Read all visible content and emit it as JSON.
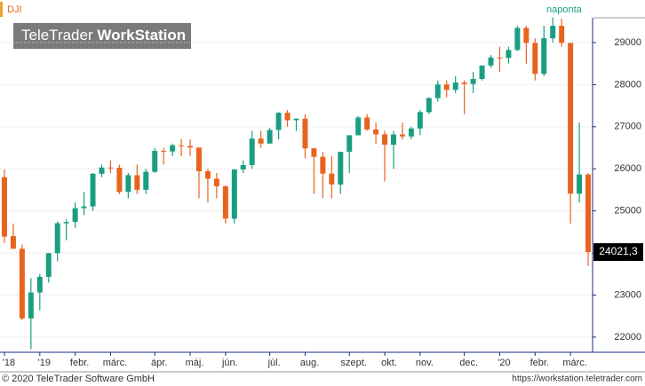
{
  "chart_data": {
    "type": "candlestick",
    "title": "DJI",
    "subtitle": "naponta",
    "logo": {
      "brand": "TeleTrader",
      "product": "WorkStation"
    },
    "footer": {
      "left": "© 2020 TeleTrader Software GmbH",
      "right": "https://workstation.teletrader.com"
    },
    "categories": [
      "'18",
      null,
      null,
      null,
      "'19",
      null,
      null,
      null,
      "febr.",
      null,
      null,
      null,
      "márc.",
      null,
      null,
      null,
      null,
      "ápr.",
      null,
      null,
      null,
      "máj.",
      null,
      null,
      null,
      "jún.",
      null,
      null,
      null,
      null,
      "júl.",
      null,
      null,
      null,
      "aug.",
      null,
      null,
      null,
      null,
      "szept.",
      null,
      null,
      null,
      "okt.",
      null,
      null,
      null,
      "nov.",
      null,
      null,
      null,
      null,
      "dec.",
      null,
      null,
      null,
      "'20",
      null,
      null,
      null,
      "febr.",
      null,
      null,
      null,
      "márc.",
      null,
      null
    ],
    "series": [
      {
        "name": "DJI",
        "open": [
          25800,
          24400,
          24100,
          22445,
          23062,
          23433,
          23996,
          24706,
          24737,
          25064,
          25106,
          25883,
          26031,
          26026,
          25450,
          25849,
          25502,
          25929,
          26425,
          26412,
          26559,
          26543,
          26505,
          25942,
          25764,
          25585,
          24815,
          25984,
          26090,
          26719,
          26600,
          26922,
          27332,
          27154,
          27192,
          26485,
          26287,
          25886,
          25628,
          26403,
          26797,
          27219,
          26935,
          26820,
          26573,
          26816,
          26770,
          26958,
          27347,
          27681,
          28004,
          27876,
          28051,
          28015,
          28135,
          28455,
          28645,
          28634,
          28823,
          29348,
          28990,
          28256,
          29102,
          29398,
          28992,
          25409,
          25864
        ],
        "high": [
          25980,
          24700,
          24200,
          23400,
          23500,
          24000,
          24750,
          24800,
          25200,
          25450,
          25900,
          26100,
          26200,
          26100,
          25900,
          26100,
          26000,
          26500,
          26500,
          26600,
          26700,
          26700,
          26500,
          26000,
          25900,
          25600,
          25990,
          26200,
          26900,
          26900,
          26970,
          27350,
          27400,
          27200,
          27300,
          26500,
          26400,
          26300,
          26400,
          26800,
          27250,
          27300,
          27100,
          26900,
          26900,
          27100,
          27000,
          27400,
          27700,
          28100,
          28100,
          28200,
          28100,
          28300,
          28400,
          28700,
          28900,
          28900,
          29400,
          29400,
          29100,
          29400,
          29600,
          29570,
          28992,
          27100,
          25900
        ],
        "low": [
          24240,
          24100,
          22400,
          21712,
          22638,
          23300,
          23800,
          24300,
          24600,
          24900,
          25000,
          25800,
          25900,
          25400,
          25300,
          25400,
          25400,
          25900,
          26100,
          26300,
          26300,
          26300,
          25300,
          25200,
          25300,
          24700,
          24700,
          25900,
          26000,
          26500,
          26600,
          26700,
          27000,
          26900,
          26250,
          25400,
          25300,
          25300,
          25400,
          25900,
          26800,
          26900,
          26600,
          25700,
          26000,
          26700,
          26700,
          26800,
          27300,
          27600,
          27700,
          27800,
          27300,
          27800,
          28100,
          28400,
          28300,
          28500,
          28800,
          28500,
          28100,
          28200,
          29000,
          28900,
          24700,
          25200,
          23690
        ],
        "close": [
          24390,
          24100,
          22445,
          23062,
          23433,
          23996,
          24706,
          24737,
          25064,
          25106,
          25883,
          26031,
          26026,
          25450,
          25849,
          25502,
          25929,
          26425,
          26412,
          26559,
          26543,
          26505,
          25942,
          25764,
          25585,
          24815,
          25984,
          26090,
          26719,
          26600,
          26922,
          27332,
          27154,
          27192,
          26485,
          26287,
          25886,
          25628,
          26403,
          26797,
          27219,
          26935,
          26820,
          26573,
          26816,
          26770,
          26958,
          27347,
          27681,
          28004,
          27876,
          28051,
          28015,
          28135,
          28455,
          28645,
          28634,
          28823,
          29348,
          28990,
          28256,
          29102,
          29398,
          28992,
          25409,
          25864,
          24021.3
        ]
      }
    ],
    "last_value": {
      "value": 24021.3,
      "label": "24021,3"
    },
    "up_color": "#1a9e82",
    "down_color": "#e8641e",
    "ylim": [
      21640,
      29590
    ],
    "yticks": [
      22000,
      23000,
      24000,
      25000,
      26000,
      27000,
      28000,
      29000
    ],
    "grid": true
  }
}
